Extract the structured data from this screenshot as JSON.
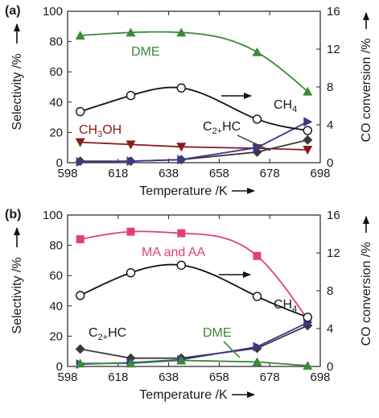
{
  "chart_data": [
    {
      "panel_label": "(a)",
      "type": "line",
      "xlabel": "Temperature /K",
      "ylabel": "Selectivity /%",
      "y2label": "CO conversion /%",
      "xlim": [
        598,
        698
      ],
      "ylim": [
        0,
        100
      ],
      "y2lim": [
        0,
        16
      ],
      "xticks": [
        598,
        618,
        638,
        658,
        678,
        698
      ],
      "yticks": [
        0,
        20,
        40,
        60,
        80,
        100
      ],
      "y2ticks": [
        0,
        4,
        8,
        12,
        16
      ],
      "series": [
        {
          "name": "DME",
          "axis": "left",
          "color": "#3a8a3a",
          "marker": "triangle",
          "x": [
            603,
            623,
            643,
            673,
            693
          ],
          "y": [
            84,
            86,
            86,
            73,
            47
          ],
          "fit": true
        },
        {
          "name": "CH3OH",
          "axis": "left",
          "color": "#8b1a1a",
          "marker": "triangle-down",
          "x": [
            603,
            623,
            643,
            673,
            693
          ],
          "y": [
            13.5,
            12,
            10.5,
            9.5,
            8.5
          ],
          "fit": false
        },
        {
          "name": "C2+HC",
          "axis": "left",
          "color": "#3a3a3a",
          "marker": "diamond",
          "x": [
            603,
            623,
            643,
            673,
            693
          ],
          "y": [
            1,
            1,
            2,
            7,
            15
          ],
          "fit": false
        },
        {
          "name": "CH4",
          "axis": "left",
          "color": "#3a3a8a",
          "marker": "triangle-right",
          "x": [
            603,
            623,
            643,
            673,
            693
          ],
          "y": [
            0.5,
            1,
            2,
            10,
            27
          ],
          "fit": false
        },
        {
          "name": "CO conversion",
          "axis": "right",
          "color": "#111111",
          "marker": "circle-open",
          "x": [
            603,
            623,
            643,
            673,
            693
          ],
          "y": [
            5.4,
            7.1,
            7.9,
            4.6,
            3.4
          ],
          "fit": true
        }
      ],
      "annotations": {
        "dme": "DME",
        "ch3oh": "CH",
        "ch3oh_sub": "3",
        "ch3oh_tail": "OH",
        "c2hc": "C",
        "c2hc_sub": "2+",
        "c2hc_tail": "HC",
        "ch4": "CH",
        "ch4_sub": "4"
      }
    },
    {
      "panel_label": "(b)",
      "type": "line",
      "xlabel": "Temperature /K",
      "ylabel": "Selectivity /%",
      "y2label": "CO conversion /%",
      "xlim": [
        598,
        698
      ],
      "ylim": [
        0,
        100
      ],
      "y2lim": [
        0,
        16
      ],
      "xticks": [
        598,
        618,
        638,
        658,
        678,
        698
      ],
      "yticks": [
        0,
        20,
        40,
        60,
        80,
        100
      ],
      "y2ticks": [
        0,
        4,
        8,
        12,
        16
      ],
      "series": [
        {
          "name": "MA and AA",
          "axis": "left",
          "color": "#e0407a",
          "marker": "square",
          "x": [
            603,
            623,
            643,
            673,
            693
          ],
          "y": [
            84,
            89,
            88,
            73,
            31
          ],
          "fit": true
        },
        {
          "name": "C2+HC",
          "axis": "left",
          "color": "#3a3a3a",
          "marker": "diamond",
          "x": [
            603,
            623,
            643,
            673,
            693
          ],
          "y": [
            11.5,
            5.5,
            5.5,
            12,
            27
          ],
          "fit": false
        },
        {
          "name": "CH4",
          "axis": "left",
          "color": "#3a3a8a",
          "marker": "triangle-right",
          "x": [
            603,
            623,
            643,
            673,
            693
          ],
          "y": [
            1.5,
            2.5,
            4.5,
            13,
            29
          ],
          "fit": false
        },
        {
          "name": "DME",
          "axis": "left",
          "color": "#3a8a3a",
          "marker": "triangle",
          "x": [
            603,
            623,
            643,
            673,
            693
          ],
          "y": [
            2,
            2,
            4,
            3,
            0.5
          ],
          "fit": false
        },
        {
          "name": "CO conversion",
          "axis": "right",
          "color": "#111111",
          "marker": "circle-open",
          "x": [
            603,
            623,
            643,
            673,
            693
          ],
          "y": [
            7.5,
            9.9,
            10.7,
            7.4,
            5.2
          ],
          "fit": true
        }
      ],
      "annotations": {
        "maaa": "MA and AA",
        "dme": "DME",
        "c2hc": "C",
        "c2hc_sub": "2+",
        "c2hc_tail": "HC",
        "ch4": "CH",
        "ch4_sub": "4"
      }
    }
  ]
}
